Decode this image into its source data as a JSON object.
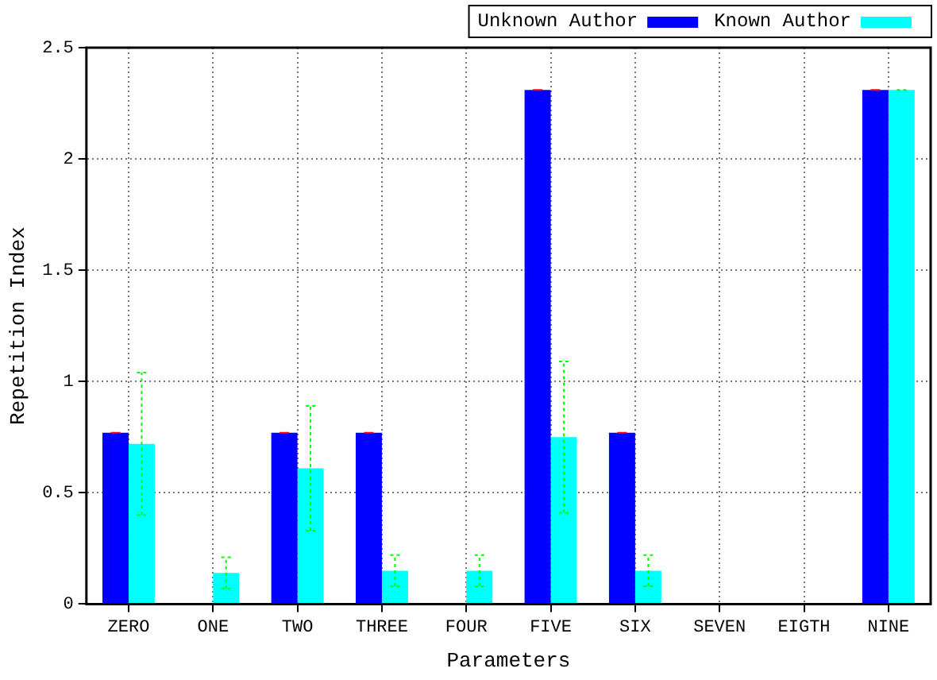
{
  "chart_data": {
    "type": "bar",
    "xlabel": "Parameters",
    "ylabel": "Repetition Index",
    "categories": [
      "ZERO",
      "ONE",
      "TWO",
      "THREE",
      "FOUR",
      "FIVE",
      "SIX",
      "SEVEN",
      "EIGTH",
      "NINE"
    ],
    "series": [
      {
        "name": "Unknown Author",
        "color": "#0000ff",
        "values": [
          0.77,
          0,
          0.77,
          0.77,
          0,
          2.31,
          0.77,
          0,
          0,
          2.31
        ],
        "errors": [
          0,
          0,
          0,
          0,
          0,
          0,
          0,
          0,
          0,
          0
        ]
      },
      {
        "name": "Known Author",
        "color": "#00ffff",
        "values": [
          0.72,
          0.14,
          0.61,
          0.15,
          0.15,
          0.75,
          0.15,
          0,
          0,
          2.31
        ],
        "errors": [
          0.32,
          0.07,
          0.28,
          0.07,
          0.07,
          0.34,
          0.07,
          0,
          0,
          0
        ]
      }
    ],
    "ylim": [
      0,
      2.5
    ],
    "yticks": [
      0,
      0.5,
      1,
      1.5,
      2,
      2.5
    ],
    "grid": true,
    "legend": "top"
  }
}
